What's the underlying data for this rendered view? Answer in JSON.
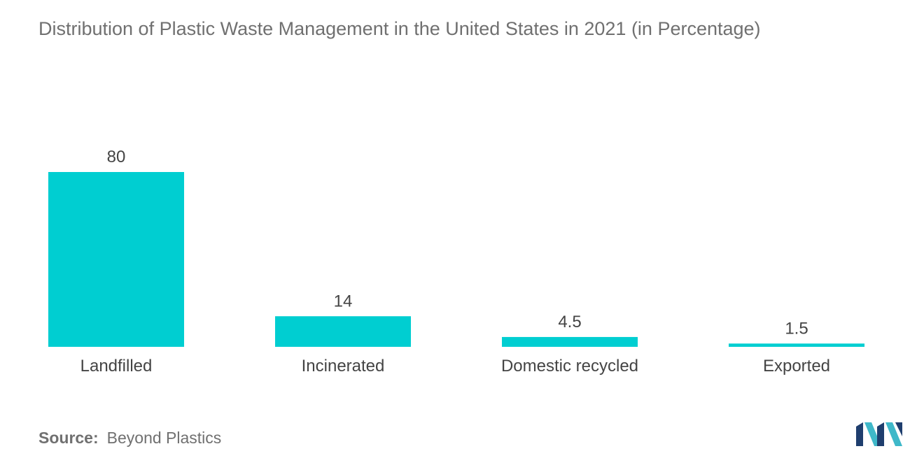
{
  "title": "Distribution of Plastic Waste Management in the United States in 2021 (in Percentage)",
  "source": {
    "label": "Source:",
    "value": "Beyond Plastics"
  },
  "colors": {
    "bar": "#00CED1",
    "text": "#707070",
    "label": "#444444",
    "logo_dark": "#1F3E6E",
    "logo_light": "#3FB8C9"
  },
  "chart_data": {
    "type": "bar",
    "title": "Distribution of Plastic Waste Management in the United States in 2021 (in Percentage)",
    "categories": [
      "Landfilled",
      "Incinerated",
      "Domestic recycled",
      "Exported"
    ],
    "values": [
      80,
      14,
      4.5,
      1.5
    ],
    "value_labels": [
      "80",
      "14",
      "4.5",
      "1.5"
    ],
    "xlabel": "",
    "ylabel": "",
    "grid": false,
    "legend": "none"
  }
}
